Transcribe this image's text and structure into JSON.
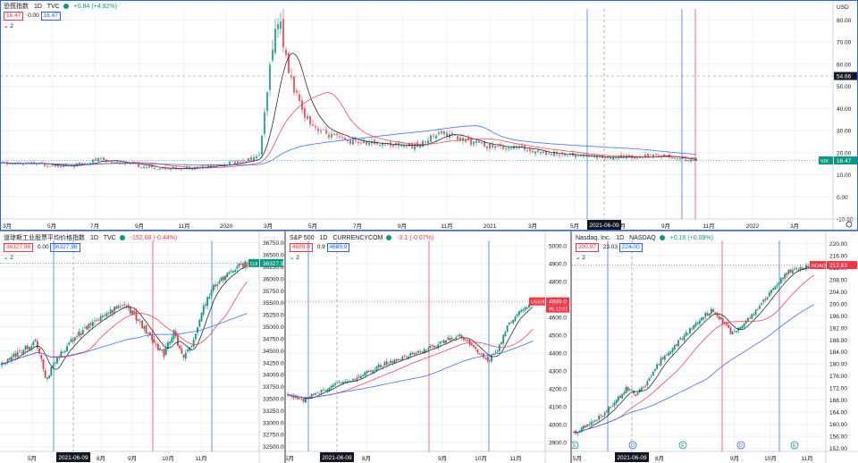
{
  "colors": {
    "up": "#089981",
    "down": "#f23645",
    "ma_fast": "#131722",
    "ma_mid": "#f23645",
    "ma_slow": "#2962ff",
    "accent": "#2962ff"
  },
  "crosshair_date_label": "2021-06-09",
  "top": {
    "symbol": "恐慌指数",
    "interval": "1D",
    "source": "TVC",
    "change": "+0.84 (+4.92%)",
    "price_box": "16.47",
    "spread": "0.00",
    "ask_box": "16.47",
    "indicator_count": "2",
    "currency": "USD",
    "price_ticks": [
      "80.00",
      "70.00",
      "60.00",
      "50.00",
      "40.00",
      "30.00",
      "20.00",
      "10.00",
      "0.00",
      "-10.00"
    ],
    "time_ticks": [
      "3月",
      "5月",
      "7月",
      "9月",
      "11月",
      "2020",
      "3月",
      "5月",
      "7月",
      "9月",
      "11月",
      "2021",
      "3月",
      "5月",
      "7月",
      "9月",
      "11月",
      "2022",
      "3月"
    ],
    "crosshair_price": "54.66",
    "last_tag": "VIX",
    "last_price": "16.47"
  },
  "dow": {
    "symbol": "道琼斯工业股票平均价格指数",
    "interval": "1D",
    "source": "TVC",
    "change": "-152.68 (-0.44%)",
    "price_box": "36327.96",
    "spread": "0.00",
    "ask_box": "36327.96",
    "indicator_count": "2",
    "price_ticks": [
      "36750.00",
      "36500.00",
      "36250.00",
      "36000.00",
      "35750.00",
      "35500.00",
      "35250.00",
      "35000.00",
      "34750.00",
      "34500.00",
      "34250.00",
      "34000.00",
      "33750.00",
      "33500.00",
      "33250.00",
      "33000.00",
      "32750.00",
      "32500.00"
    ],
    "time_ticks": [
      "5月",
      "7月",
      "8月",
      "9月",
      "10月",
      "11月"
    ],
    "last_tag": "DJI",
    "last_price": "36327.96"
  },
  "spx": {
    "symbol": "S&P 500",
    "interval": "1D",
    "source": "CURRENCYCOM",
    "change": "-3.1 (-0.07%)",
    "price_box": "4689.0",
    "spread": "0.9",
    "ask_box": "4689.9",
    "indicator_count": "2",
    "price_ticks": [
      "5000.0",
      "4900.0",
      "4800.0",
      "4700.0",
      "4600.0",
      "4500.0",
      "4400.0",
      "4300.0",
      "4200.0",
      "4100.0",
      "4000.0",
      "3900.0"
    ],
    "time_ticks": [
      "5月",
      "7月",
      "8月",
      "9月",
      "10月",
      "11月"
    ],
    "last_tag": "US500",
    "last_price": "4689.0",
    "countdown": "95:12:01"
  },
  "ndaq": {
    "symbol": "Nasdaq, Inc.",
    "interval": "1D",
    "source": "NASDAQ",
    "change": "+0.16 (+0.09%)",
    "price_box": "200.97",
    "spread": "23.03",
    "ask_box": "224.00",
    "indicator_count": "2",
    "price_ticks": [
      "220.00",
      "216.00",
      "212.00",
      "208.00",
      "204.00",
      "200.00",
      "196.00",
      "192.00",
      "188.00",
      "184.00",
      "180.00",
      "176.00",
      "172.00",
      "168.00",
      "164.00",
      "160.00",
      "156.00",
      "152.00"
    ],
    "time_ticks": [
      "5月",
      "7月",
      "8月",
      "9月",
      "10月",
      "11月"
    ],
    "last_tag": "NDAQ",
    "last_price": "212.83",
    "event_labels": [
      "E",
      "D",
      "E",
      "D",
      "E"
    ]
  },
  "chart_data": [
    {
      "type": "candlestick",
      "title": "恐慌指数 1D TVC",
      "x_start": "2019-03",
      "x_end": "2021-11",
      "ylim": [
        -10,
        85
      ],
      "close_path": [
        [
          0,
          15
        ],
        [
          4,
          15
        ],
        [
          10,
          14
        ],
        [
          14,
          17
        ],
        [
          18,
          15
        ],
        [
          22,
          13
        ],
        [
          26,
          13
        ],
        [
          30,
          14
        ],
        [
          34,
          16
        ],
        [
          37,
          18
        ],
        [
          38,
          40
        ],
        [
          39,
          70
        ],
        [
          40,
          82
        ],
        [
          41,
          60
        ],
        [
          42,
          50
        ],
        [
          43,
          40
        ],
        [
          45,
          32
        ],
        [
          47,
          28
        ],
        [
          50,
          25
        ],
        [
          55,
          24
        ],
        [
          60,
          23
        ],
        [
          63,
          30
        ],
        [
          66,
          26
        ],
        [
          70,
          23
        ],
        [
          75,
          22
        ],
        [
          78,
          20
        ],
        [
          82,
          19
        ],
        [
          86,
          18
        ],
        [
          90,
          18
        ],
        [
          95,
          19
        ],
        [
          98,
          17
        ],
        [
          100,
          16.47
        ]
      ]
    },
    {
      "type": "candlestick",
      "title": "道琼斯工业股票平均价格指数 1D TVC",
      "ylim": [
        32400,
        36800
      ],
      "close_path": [
        [
          0,
          34200
        ],
        [
          8,
          34500
        ],
        [
          14,
          34700
        ],
        [
          18,
          33900
        ],
        [
          22,
          34300
        ],
        [
          30,
          34800
        ],
        [
          38,
          35100
        ],
        [
          44,
          35300
        ],
        [
          50,
          35500
        ],
        [
          56,
          35100
        ],
        [
          62,
          34700
        ],
        [
          66,
          34400
        ],
        [
          70,
          34900
        ],
        [
          74,
          34300
        ],
        [
          78,
          34700
        ],
        [
          82,
          35400
        ],
        [
          86,
          35800
        ],
        [
          90,
          36000
        ],
        [
          94,
          36200
        ],
        [
          100,
          36327.96
        ]
      ]
    },
    {
      "type": "candlestick",
      "title": "S&P 500 1D CURRENCYCOM",
      "ylim": [
        3850,
        5030
      ],
      "close_path": [
        [
          0,
          4170
        ],
        [
          6,
          4130
        ],
        [
          12,
          4180
        ],
        [
          20,
          4230
        ],
        [
          28,
          4260
        ],
        [
          36,
          4320
        ],
        [
          44,
          4360
        ],
        [
          52,
          4400
        ],
        [
          60,
          4440
        ],
        [
          66,
          4480
        ],
        [
          70,
          4500
        ],
        [
          74,
          4450
        ],
        [
          78,
          4400
        ],
        [
          82,
          4360
        ],
        [
          86,
          4430
        ],
        [
          90,
          4560
        ],
        [
          94,
          4620
        ],
        [
          100,
          4689
        ]
      ]
    },
    {
      "type": "candlestick",
      "title": "Nasdaq, Inc. 1D NASDAQ",
      "ylim": [
        151,
        221
      ],
      "close_path": [
        [
          0,
          157
        ],
        [
          6,
          160
        ],
        [
          12,
          163
        ],
        [
          18,
          168
        ],
        [
          22,
          172
        ],
        [
          26,
          170
        ],
        [
          30,
          173
        ],
        [
          36,
          181
        ],
        [
          42,
          186
        ],
        [
          48,
          191
        ],
        [
          54,
          196
        ],
        [
          58,
          198
        ],
        [
          62,
          194
        ],
        [
          66,
          190
        ],
        [
          70,
          193
        ],
        [
          74,
          196
        ],
        [
          78,
          200
        ],
        [
          82,
          204
        ],
        [
          86,
          208
        ],
        [
          90,
          211
        ],
        [
          100,
          212.83
        ]
      ]
    }
  ]
}
